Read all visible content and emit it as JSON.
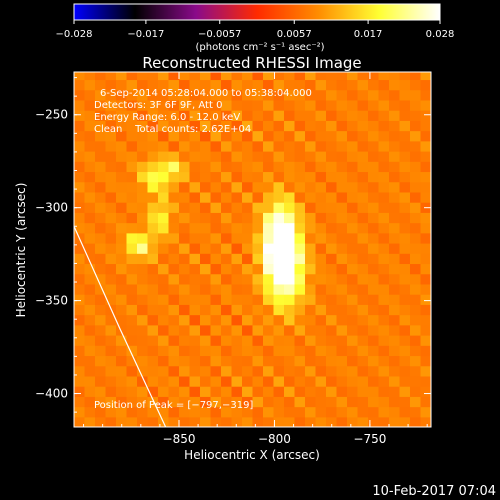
{
  "chart_data": {
    "type": "heatmap",
    "title": "Reconstructed RHESSI Image",
    "xlabel": "Heliocentric X (arcsec)",
    "ylabel": "Heliocentric Y (arcsec)",
    "xlim": [
      -905,
      -718
    ],
    "ylim": [
      -418,
      -227
    ],
    "xticks": [
      -850,
      -800,
      -750
    ],
    "xtick_labels": [
      "−850",
      "−800",
      "−750"
    ],
    "yticks": [
      -250,
      -300,
      -350,
      -400
    ],
    "ytick_labels": [
      "−250",
      "−300",
      "−350",
      "−400"
    ],
    "colorbar": {
      "range": [
        -0.028,
        0.028
      ],
      "tick_values": [
        -0.028,
        -0.017,
        -0.0057,
        0.0057,
        0.017,
        0.028
      ],
      "tick_labels": [
        "−0.028",
        "−0.017",
        "−0.0057",
        "0.0057",
        "0.017",
        "0.028"
      ],
      "units_label": "(photons cm⁻² s⁻¹ asec⁻²)",
      "colormap": [
        "#0000ff",
        "#000000",
        "#8a0a8a",
        "#ff2a00",
        "#ff8c00",
        "#ffff33",
        "#ffffff"
      ]
    },
    "annotations": [
      "6-Sep-2014 05:28:04.000 to 05:38:04.000",
      "Detectors: 3F 6F 9F, Att 0",
      "Energy Range: 6.0 - 12.0 keV",
      "Clean    Total counts: 2.62E+04",
      "Position of Peak = [−797,−319]"
    ],
    "peak": {
      "x": -797,
      "y": -319
    },
    "sources": [
      {
        "x": -797,
        "y": -318,
        "width": 6,
        "height": 14,
        "intensity": 0.028
      },
      {
        "x": -794,
        "y": -334,
        "width": 7,
        "height": 14,
        "intensity": 0.017
      },
      {
        "x": -871,
        "y": -320,
        "width": 5,
        "height": 5,
        "intensity": 0.014
      },
      {
        "x": -860,
        "y": -305,
        "width": 4,
        "height": 7,
        "intensity": 0.011
      },
      {
        "x": -862,
        "y": -283,
        "width": 6,
        "height": 6,
        "intensity": 0.012
      },
      {
        "x": -852,
        "y": -278,
        "width": 4,
        "height": 4,
        "intensity": 0.009
      }
    ],
    "background_level": 0.008,
    "limb_line": [
      {
        "x": -905,
        "y": -310
      },
      {
        "x": -881,
        "y": -365
      },
      {
        "x": -857,
        "y": -418
      }
    ],
    "timestamp": "10-Feb-2017 07:04"
  }
}
